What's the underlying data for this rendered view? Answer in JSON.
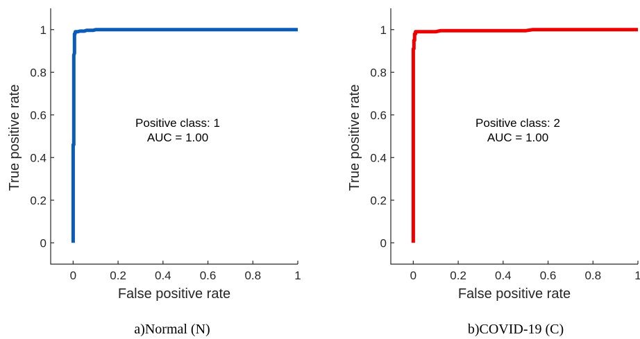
{
  "chart_data": [
    {
      "type": "line",
      "caption": "a)Normal (N)",
      "xlabel": "False positive rate",
      "ylabel": "True positive rate",
      "xlim": [
        -0.1,
        1.0
      ],
      "ylim": [
        -0.1,
        1.1
      ],
      "xticks": [
        "0",
        "0.2",
        "0.4",
        "0.6",
        "0.8",
        "1"
      ],
      "xtick_values": [
        0,
        0.2,
        0.4,
        0.6,
        0.8,
        1
      ],
      "yticks": [
        "0",
        "0.2",
        "0.4",
        "0.6",
        "0.8",
        "1"
      ],
      "ytick_values": [
        0,
        0.2,
        0.4,
        0.6,
        0.8,
        1
      ],
      "annotation": [
        "Positive class: 1",
        "AUC = 1.00"
      ],
      "grid": false,
      "series": [
        {
          "color": "#0a5cb8",
          "x": [
            0,
            0,
            0.003,
            0.003,
            0.006,
            0.006,
            0.008,
            0.01,
            0.02,
            0.03,
            0.05,
            0.06,
            0.09,
            0.1,
            0.3,
            0.6,
            1.0
          ],
          "y": [
            0,
            0.46,
            0.46,
            0.88,
            0.89,
            0.98,
            0.98,
            0.99,
            0.99,
            0.993,
            0.993,
            0.997,
            0.997,
            1.0,
            1.0,
            1.0,
            1.0
          ]
        }
      ]
    },
    {
      "type": "line",
      "caption": "b)COVID-19 (C)",
      "xlabel": "False positive rate",
      "ylabel": "True positive rate",
      "xlim": [
        -0.1,
        1.0
      ],
      "ylim": [
        -0.1,
        1.1
      ],
      "xticks": [
        "0",
        "0.2",
        "0.4",
        "0.6",
        "0.8",
        "1"
      ],
      "xtick_values": [
        0,
        0.2,
        0.4,
        0.6,
        0.8,
        1
      ],
      "yticks": [
        "0",
        "0.2",
        "0.4",
        "0.6",
        "0.8",
        "1"
      ],
      "ytick_values": [
        0,
        0.2,
        0.4,
        0.6,
        0.8,
        1
      ],
      "annotation": [
        "Positive class: 2",
        "AUC = 1.00"
      ],
      "grid": false,
      "series": [
        {
          "color": "#ee0000",
          "x": [
            0,
            0,
            0.003,
            0.003,
            0.006,
            0.006,
            0.01,
            0.01,
            0.02,
            0.1,
            0.12,
            0.5,
            0.53,
            0.8,
            1.0
          ],
          "y": [
            0,
            0.91,
            0.91,
            0.95,
            0.95,
            0.98,
            0.98,
            0.99,
            0.99,
            0.99,
            0.995,
            0.995,
            1.0,
            1.0,
            1.0
          ]
        }
      ]
    }
  ]
}
